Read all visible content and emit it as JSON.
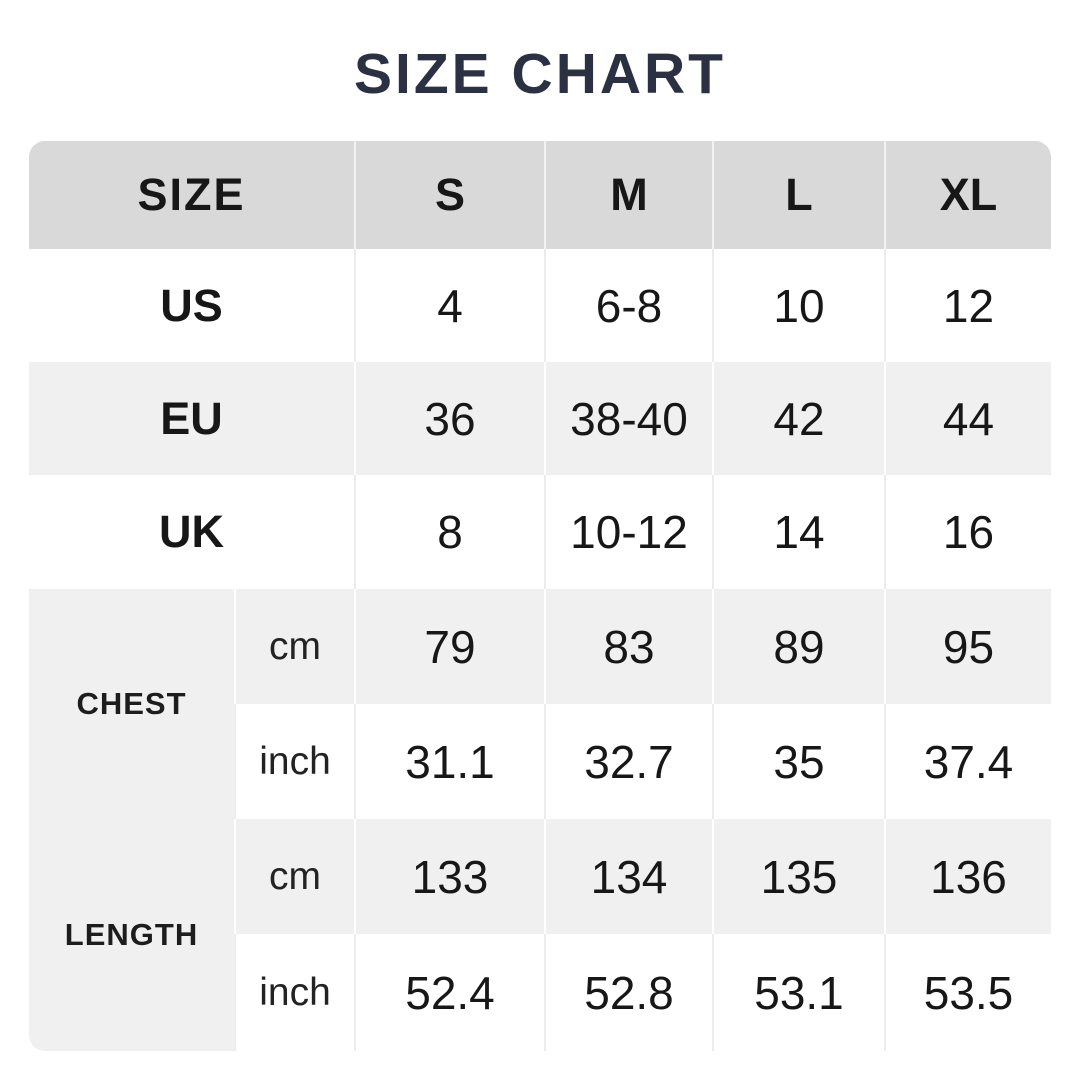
{
  "title": "SIZE CHART",
  "colors": {
    "title_text": "#2b3043",
    "header_bg": "#d9d9d9",
    "stripe_bg": "#f0f0f1",
    "row_bg": "#ffffff",
    "text": "#171717"
  },
  "table": {
    "header": {
      "label": "SIZE",
      "sizes": [
        "S",
        "M",
        "L",
        "XL"
      ]
    },
    "rows": [
      {
        "label": "US",
        "values": [
          "4",
          "6-8",
          "10",
          "12"
        ]
      },
      {
        "label": "EU",
        "values": [
          "36",
          "38-40",
          "42",
          "44"
        ]
      },
      {
        "label": "UK",
        "values": [
          "8",
          "10-12",
          "14",
          "16"
        ]
      }
    ],
    "measures": [
      {
        "label": "CHEST",
        "units": [
          {
            "unit": "cm",
            "values": [
              "79",
              "83",
              "89",
              "95"
            ]
          },
          {
            "unit": "inch",
            "values": [
              "31.1",
              "32.7",
              "35",
              "37.4"
            ]
          }
        ]
      },
      {
        "label": "LENGTH",
        "units": [
          {
            "unit": "cm",
            "values": [
              "133",
              "134",
              "135",
              "136"
            ]
          },
          {
            "unit": "inch",
            "values": [
              "52.4",
              "52.8",
              "53.1",
              "53.5"
            ]
          }
        ]
      }
    ]
  },
  "chart_data": {
    "type": "table",
    "title": "SIZE CHART",
    "columns": [
      "SIZE",
      "S",
      "M",
      "L",
      "XL"
    ],
    "rows": [
      [
        "US",
        "4",
        "6-8",
        "10",
        "12"
      ],
      [
        "EU",
        "36",
        "38-40",
        "42",
        "44"
      ],
      [
        "UK",
        "8",
        "10-12",
        "14",
        "16"
      ],
      [
        "CHEST cm",
        "79",
        "83",
        "89",
        "95"
      ],
      [
        "CHEST inch",
        "31.1",
        "32.7",
        "35",
        "37.4"
      ],
      [
        "LENGTH cm",
        "133",
        "134",
        "135",
        "136"
      ],
      [
        "LENGTH inch",
        "52.4",
        "52.8",
        "53.1",
        "53.5"
      ]
    ]
  }
}
